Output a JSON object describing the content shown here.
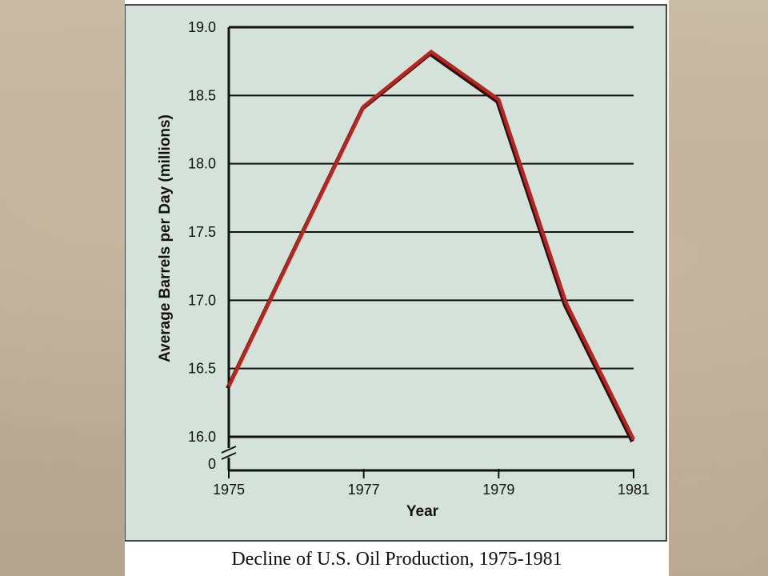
{
  "caption": "Decline of U.S. Oil Production, 1975-1981",
  "colors": {
    "panel": "#d4e2da",
    "series_outer": "#1a1a1a",
    "series_inner": "#c0211c"
  },
  "chart_data": {
    "type": "line",
    "title": "",
    "xlabel": "Year",
    "ylabel": "Average Barrels per Day (millions)",
    "x": [
      1975,
      1976,
      1977,
      1978,
      1979,
      1980,
      1981
    ],
    "series": [
      {
        "values": [
          16.37,
          17.4,
          18.42,
          18.82,
          18.47,
          16.98,
          15.98
        ]
      }
    ],
    "xlim": [
      1975,
      1981
    ],
    "ylim": [
      16.0,
      19.0
    ],
    "x_ticks": [
      "1975",
      "1977",
      "1979",
      "1981"
    ],
    "y_ticks": [
      "19.0",
      "18.5",
      "18.0",
      "17.5",
      "17.0",
      "16.5",
      "16.0"
    ],
    "y_zero_label": "0",
    "axis_break": true,
    "grid": true
  }
}
